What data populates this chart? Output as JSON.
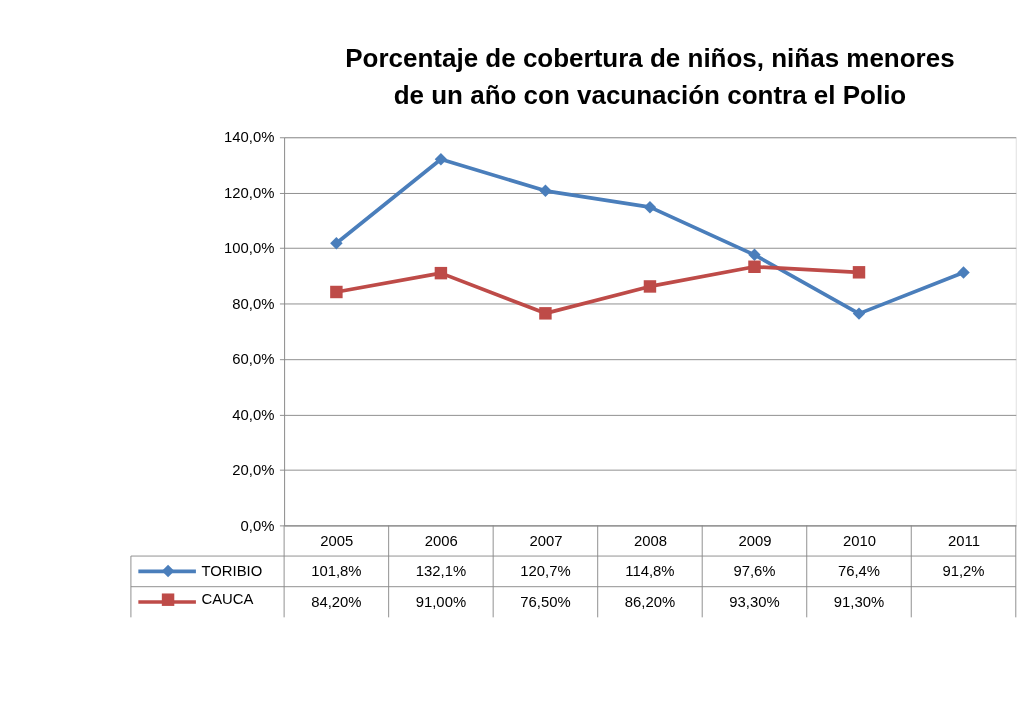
{
  "chart_data": {
    "type": "line",
    "title": "Porcentaje de cobertura de niños, niñas menores\nde un año con vacunación contra el Polio",
    "categories": [
      "2005",
      "2006",
      "2007",
      "2008",
      "2009",
      "2010",
      "2011"
    ],
    "series": [
      {
        "name": "TORIBIO",
        "color": "#4a7ebb",
        "marker": "diamond",
        "values": [
          101.8,
          132.1,
          120.7,
          114.8,
          97.6,
          76.4,
          91.2
        ],
        "value_labels": [
          "101,8%",
          "132,1%",
          "120,7%",
          "114,8%",
          "97,6%",
          "76,4%",
          "91,2%"
        ]
      },
      {
        "name": "CAUCA",
        "color": "#be4b48",
        "marker": "square",
        "values": [
          84.2,
          91.0,
          76.5,
          86.2,
          93.3,
          91.3,
          null
        ],
        "value_labels": [
          "84,20%",
          "91,00%",
          "76,50%",
          "86,20%",
          "93,30%",
          "91,30%",
          null
        ]
      }
    ],
    "ylim": [
      0,
      140
    ],
    "yticks": [
      {
        "value": 0,
        "label": "0,0%"
      },
      {
        "value": 20,
        "label": "20,0%"
      },
      {
        "value": 40,
        "label": "40,0%"
      },
      {
        "value": 60,
        "label": "60,0%"
      },
      {
        "value": 80,
        "label": "80,0%"
      },
      {
        "value": 100,
        "label": "100,0%"
      },
      {
        "value": 120,
        "label": "120,0%"
      },
      {
        "value": 140,
        "label": "140,0%"
      }
    ],
    "grid": "y",
    "legend": "bottom",
    "line_style": "solid"
  }
}
